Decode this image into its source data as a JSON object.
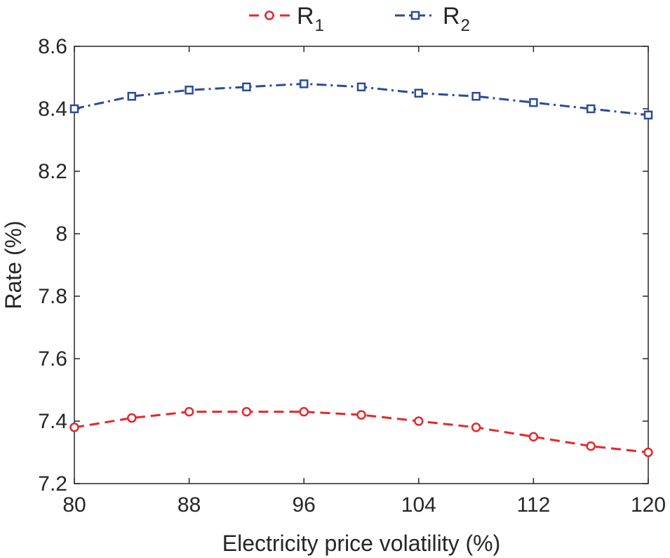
{
  "chart_data": {
    "type": "line",
    "title": "",
    "xlabel": "Electricity price volatility (%)",
    "ylabel": "Rate (%)",
    "xlim": [
      80,
      120
    ],
    "ylim": [
      7.2,
      8.6
    ],
    "xticks": [
      80,
      88,
      96,
      104,
      112,
      120
    ],
    "xtick_labels": [
      "80",
      "88",
      "96",
      "104",
      "112",
      "120"
    ],
    "yticks": [
      7.2,
      7.4,
      7.6,
      7.8,
      8.0,
      8.2,
      8.4,
      8.6
    ],
    "ytick_labels": [
      "7.2",
      "7.4",
      "7.6",
      "7.8",
      "8",
      "8.2",
      "8.4",
      "8.6"
    ],
    "grid": false,
    "legend_position": "top-outside",
    "x": [
      80,
      84,
      88,
      92,
      96,
      100,
      104,
      108,
      112,
      116,
      120
    ],
    "series": [
      {
        "name": "R",
        "subscript": "1",
        "color": "#e8262a",
        "line_style": "dashed",
        "marker": "circle",
        "values": [
          7.38,
          7.41,
          7.43,
          7.43,
          7.43,
          7.42,
          7.4,
          7.38,
          7.35,
          7.32,
          7.3
        ]
      },
      {
        "name": "R",
        "subscript": "2",
        "color": "#2c4a9c",
        "line_style": "dashdot",
        "marker": "square",
        "values": [
          8.4,
          8.44,
          8.46,
          8.47,
          8.48,
          8.47,
          8.45,
          8.44,
          8.42,
          8.4,
          8.38
        ]
      }
    ]
  }
}
